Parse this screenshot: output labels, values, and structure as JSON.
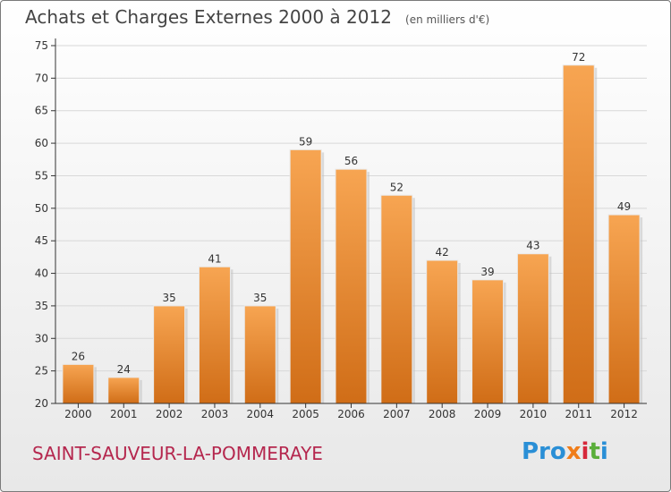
{
  "header": {
    "title": "Achats et Charges Externes 2000 à 2012",
    "unit": "(en milliers d'€)"
  },
  "footer": {
    "commune": "SAINT-SAUVEUR-LA-POMMERAYE",
    "logo": [
      "Pro",
      "x",
      "i",
      "t",
      "i"
    ]
  },
  "colors": {
    "bar_top": "#f7a552",
    "bar_bottom": "#d06d17",
    "commune": "#b5274e",
    "axis": "#333333",
    "grid": "#d8d8d8"
  },
  "chart_data": {
    "type": "bar",
    "title": "Achats et Charges Externes 2000 à 2012",
    "subtitle": "(en milliers d'€)",
    "xlabel": "",
    "ylabel": "",
    "categories": [
      "2000",
      "2001",
      "2002",
      "2003",
      "2004",
      "2005",
      "2006",
      "2007",
      "2008",
      "2009",
      "2010",
      "2011",
      "2012"
    ],
    "values": [
      26,
      24,
      35,
      41,
      35,
      59,
      56,
      52,
      42,
      39,
      43,
      72,
      49
    ],
    "ylim": [
      20,
      75
    ],
    "yticks": [
      20,
      25,
      30,
      35,
      40,
      45,
      50,
      55,
      60,
      65,
      70,
      75
    ],
    "grid": true
  }
}
